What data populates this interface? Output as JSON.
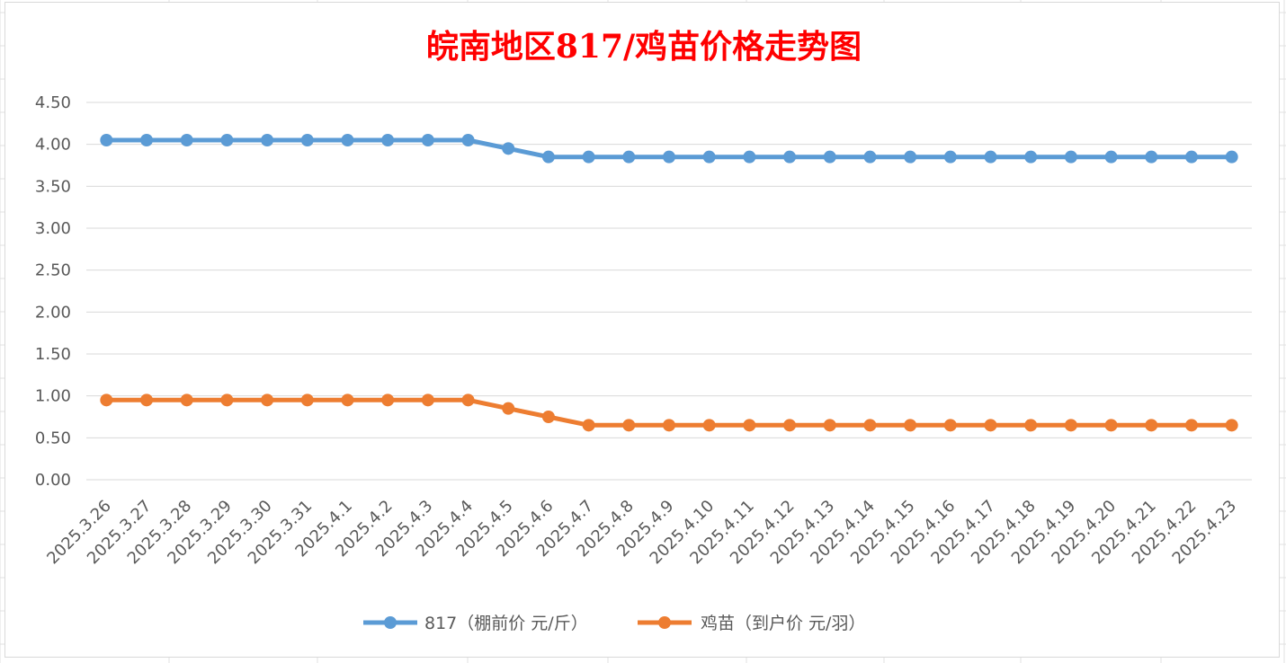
{
  "chart_data": {
    "type": "line",
    "title": "皖南地区817/鸡苗价格走势图",
    "xlabel": "",
    "ylabel": "",
    "ylim": [
      0,
      4.5
    ],
    "yticks": [
      "0.00",
      "0.50",
      "1.00",
      "1.50",
      "2.00",
      "2.50",
      "3.00",
      "3.50",
      "4.00",
      "4.50"
    ],
    "grid": true,
    "legend_position": "bottom",
    "categories": [
      "2025.3.26",
      "2025.3.27",
      "2025.3.28",
      "2025.3.29",
      "2025.3.30",
      "2025.3.31",
      "2025.4.1",
      "2025.4.2",
      "2025.4.3",
      "2025.4.4",
      "2025.4.5",
      "2025.4.6",
      "2025.4.7",
      "2025.4.8",
      "2025.4.9",
      "2025.4.10",
      "2025.4.11",
      "2025.4.12",
      "2025.4.13",
      "2025.4.14",
      "2025.4.15",
      "2025.4.16",
      "2025.4.17",
      "2025.4.18",
      "2025.4.19",
      "2025.4.20",
      "2025.4.21",
      "2025.4.22",
      "2025.4.23"
    ],
    "series": [
      {
        "name": "817（棚前价 元/斤）",
        "color": "#5b9bd5",
        "values": [
          4.05,
          4.05,
          4.05,
          4.05,
          4.05,
          4.05,
          4.05,
          4.05,
          4.05,
          4.05,
          3.95,
          3.85,
          3.85,
          3.85,
          3.85,
          3.85,
          3.85,
          3.85,
          3.85,
          3.85,
          3.85,
          3.85,
          3.85,
          3.85,
          3.85,
          3.85,
          3.85,
          3.85,
          3.85
        ]
      },
      {
        "name": "鸡苗（到户价 元/羽）",
        "color": "#ed7d31",
        "values": [
          0.95,
          0.95,
          0.95,
          0.95,
          0.95,
          0.95,
          0.95,
          0.95,
          0.95,
          0.95,
          0.85,
          0.75,
          0.65,
          0.65,
          0.65,
          0.65,
          0.65,
          0.65,
          0.65,
          0.65,
          0.65,
          0.65,
          0.65,
          0.65,
          0.65,
          0.65,
          0.65,
          0.65,
          0.65
        ]
      }
    ]
  }
}
